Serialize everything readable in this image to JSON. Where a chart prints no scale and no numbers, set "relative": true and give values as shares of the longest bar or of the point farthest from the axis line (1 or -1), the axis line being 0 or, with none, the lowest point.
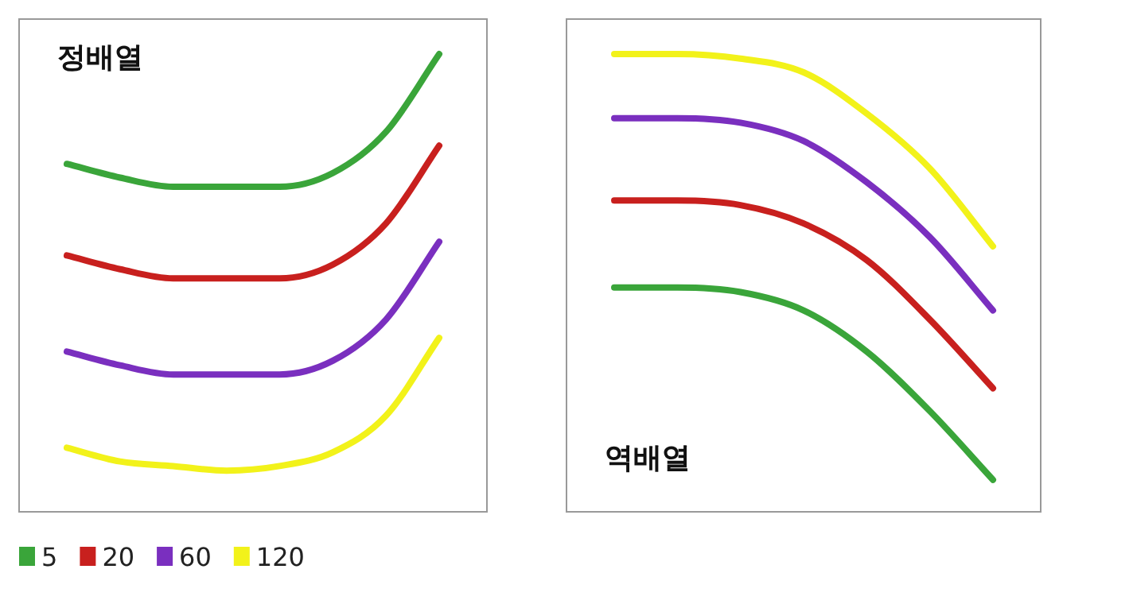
{
  "chart_data": [
    {
      "type": "line",
      "title": "정배열",
      "relative": true,
      "legend": "bottom",
      "categories": [
        null,
        null,
        null,
        null,
        null,
        null,
        null,
        null
      ],
      "series": [
        {
          "name": "5",
          "color": "#3aa53a",
          "values": [
            0.76,
            0.73,
            0.71,
            0.71,
            0.71,
            0.74,
            0.83,
            1
          ]
        },
        {
          "name": "20",
          "color": "#c8201e",
          "values": [
            0.56,
            0.53,
            0.51,
            0.51,
            0.51,
            0.54,
            0.63,
            0.8
          ]
        },
        {
          "name": "60",
          "color": "#7a2fbf",
          "values": [
            0.35,
            0.32,
            0.3,
            0.3,
            0.3,
            0.33,
            0.42,
            0.59
          ]
        },
        {
          "name": "120",
          "color": "#f2f21a",
          "values": [
            0.14,
            0.11,
            0.1,
            0.09,
            0.1,
            0.13,
            0.21,
            0.38
          ]
        }
      ]
    },
    {
      "type": "line",
      "title": "역배열",
      "relative": true,
      "categories": [
        null,
        null,
        null,
        null,
        null,
        null,
        null
      ],
      "series": [
        {
          "color": "#f2f21a",
          "values": [
            1,
            1,
            0.99,
            0.96,
            0.87,
            0.75,
            0.58
          ]
        },
        {
          "color": "#7a2fbf",
          "values": [
            0.86,
            0.86,
            0.85,
            0.81,
            0.72,
            0.6,
            0.44
          ]
        },
        {
          "color": "#c8201e",
          "values": [
            0.68,
            0.68,
            0.67,
            0.63,
            0.55,
            0.42,
            0.27
          ]
        },
        {
          "color": "#3aa53a",
          "values": [
            0.49,
            0.49,
            0.48,
            0.44,
            0.35,
            0.22,
            0.07
          ]
        }
      ]
    }
  ]
}
